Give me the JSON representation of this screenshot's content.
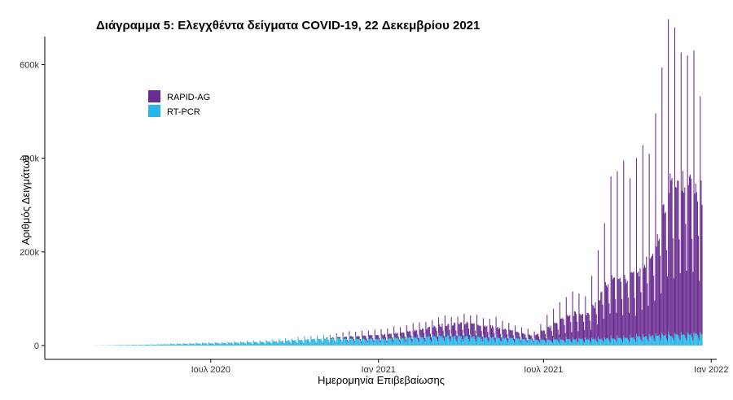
{
  "chart_data": {
    "type": "bar",
    "stacked": true,
    "title": "Διάγραμμα 5: Ελεγχθέντα δείγματα COVID-19, 22 Δεκεμβρίου 2021",
    "xlabel": "Ημερομηνία Επιβεβαίωσης",
    "ylabel": "Αριθμός Δειγμάτων",
    "x_range": [
      "2020-02-26",
      "2021-12-22"
    ],
    "xlim": [
      "2020-01-01",
      "2022-01-07"
    ],
    "ylim": [
      0,
      660000
    ],
    "y_ticks": [
      {
        "value": 0,
        "label": "0"
      },
      {
        "value": 200000,
        "label": "200k"
      },
      {
        "value": 400000,
        "label": "400k"
      },
      {
        "value": 600000,
        "label": "600k"
      }
    ],
    "x_ticks": [
      {
        "date": "2020-07-01",
        "label": "Ιουλ 2020"
      },
      {
        "date": "2021-01-01",
        "label": "Ιαν 2021"
      },
      {
        "date": "2021-07-01",
        "label": "Ιουλ 2021"
      },
      {
        "date": "2022-01-01",
        "label": "Ιαν 2022"
      }
    ],
    "grid": false,
    "legend_position": "top-left",
    "series": [
      {
        "name": "RAPID-AG",
        "color": "#6a2c91",
        "profile": [
          {
            "date": "2020-02-26",
            "weekday": 0,
            "peak": 0
          },
          {
            "date": "2020-10-31",
            "weekday": 0,
            "peak": 0
          },
          {
            "date": "2020-11-20",
            "weekday": 3000,
            "peak": 6000
          },
          {
            "date": "2020-12-20",
            "weekday": 8000,
            "peak": 12000
          },
          {
            "date": "2021-01-20",
            "weekday": 10000,
            "peak": 18000
          },
          {
            "date": "2021-02-20",
            "weekday": 18000,
            "peak": 28000
          },
          {
            "date": "2021-03-20",
            "weekday": 25000,
            "peak": 35000
          },
          {
            "date": "2021-04-10",
            "weekday": 30000,
            "peak": 40000
          },
          {
            "date": "2021-05-10",
            "weekday": 22000,
            "peak": 35000
          },
          {
            "date": "2021-06-20",
            "weekday": 8000,
            "peak": 12000
          },
          {
            "date": "2021-07-10",
            "weekday": 30000,
            "peak": 60000
          },
          {
            "date": "2021-08-01",
            "weekday": 55000,
            "peak": 95000
          },
          {
            "date": "2021-08-20",
            "weekday": 55000,
            "peak": 90000
          },
          {
            "date": "2021-09-13",
            "weekday": 130000,
            "peak": 330000
          },
          {
            "date": "2021-10-10",
            "weekday": 130000,
            "peak": 360000
          },
          {
            "date": "2021-11-01",
            "weekday": 180000,
            "peak": 430000
          },
          {
            "date": "2021-11-15",
            "weekday": 320000,
            "peak": 630000
          },
          {
            "date": "2021-12-05",
            "weekday": 320000,
            "peak": 600000
          },
          {
            "date": "2021-12-22",
            "weekday": 300000,
            "peak": 520000
          }
        ]
      },
      {
        "name": "RT-PCR",
        "color": "#29b6e8",
        "profile": [
          {
            "date": "2020-02-26",
            "weekday": 200,
            "peak": 200
          },
          {
            "date": "2020-05-01",
            "weekday": 2000,
            "peak": 3000
          },
          {
            "date": "2020-07-01",
            "weekday": 5000,
            "peak": 7000
          },
          {
            "date": "2020-09-01",
            "weekday": 8000,
            "peak": 12000
          },
          {
            "date": "2020-11-01",
            "weekday": 15000,
            "peak": 22000
          },
          {
            "date": "2021-01-01",
            "weekday": 14000,
            "peak": 20000
          },
          {
            "date": "2021-03-15",
            "weekday": 20000,
            "peak": 28000
          },
          {
            "date": "2021-05-01",
            "weekday": 18000,
            "peak": 24000
          },
          {
            "date": "2021-07-01",
            "weekday": 12000,
            "peak": 16000
          },
          {
            "date": "2021-09-01",
            "weekday": 14000,
            "peak": 18000
          },
          {
            "date": "2021-11-15",
            "weekday": 22000,
            "peak": 28000
          },
          {
            "date": "2021-12-22",
            "weekday": 24000,
            "peak": 30000
          }
        ]
      }
    ]
  }
}
